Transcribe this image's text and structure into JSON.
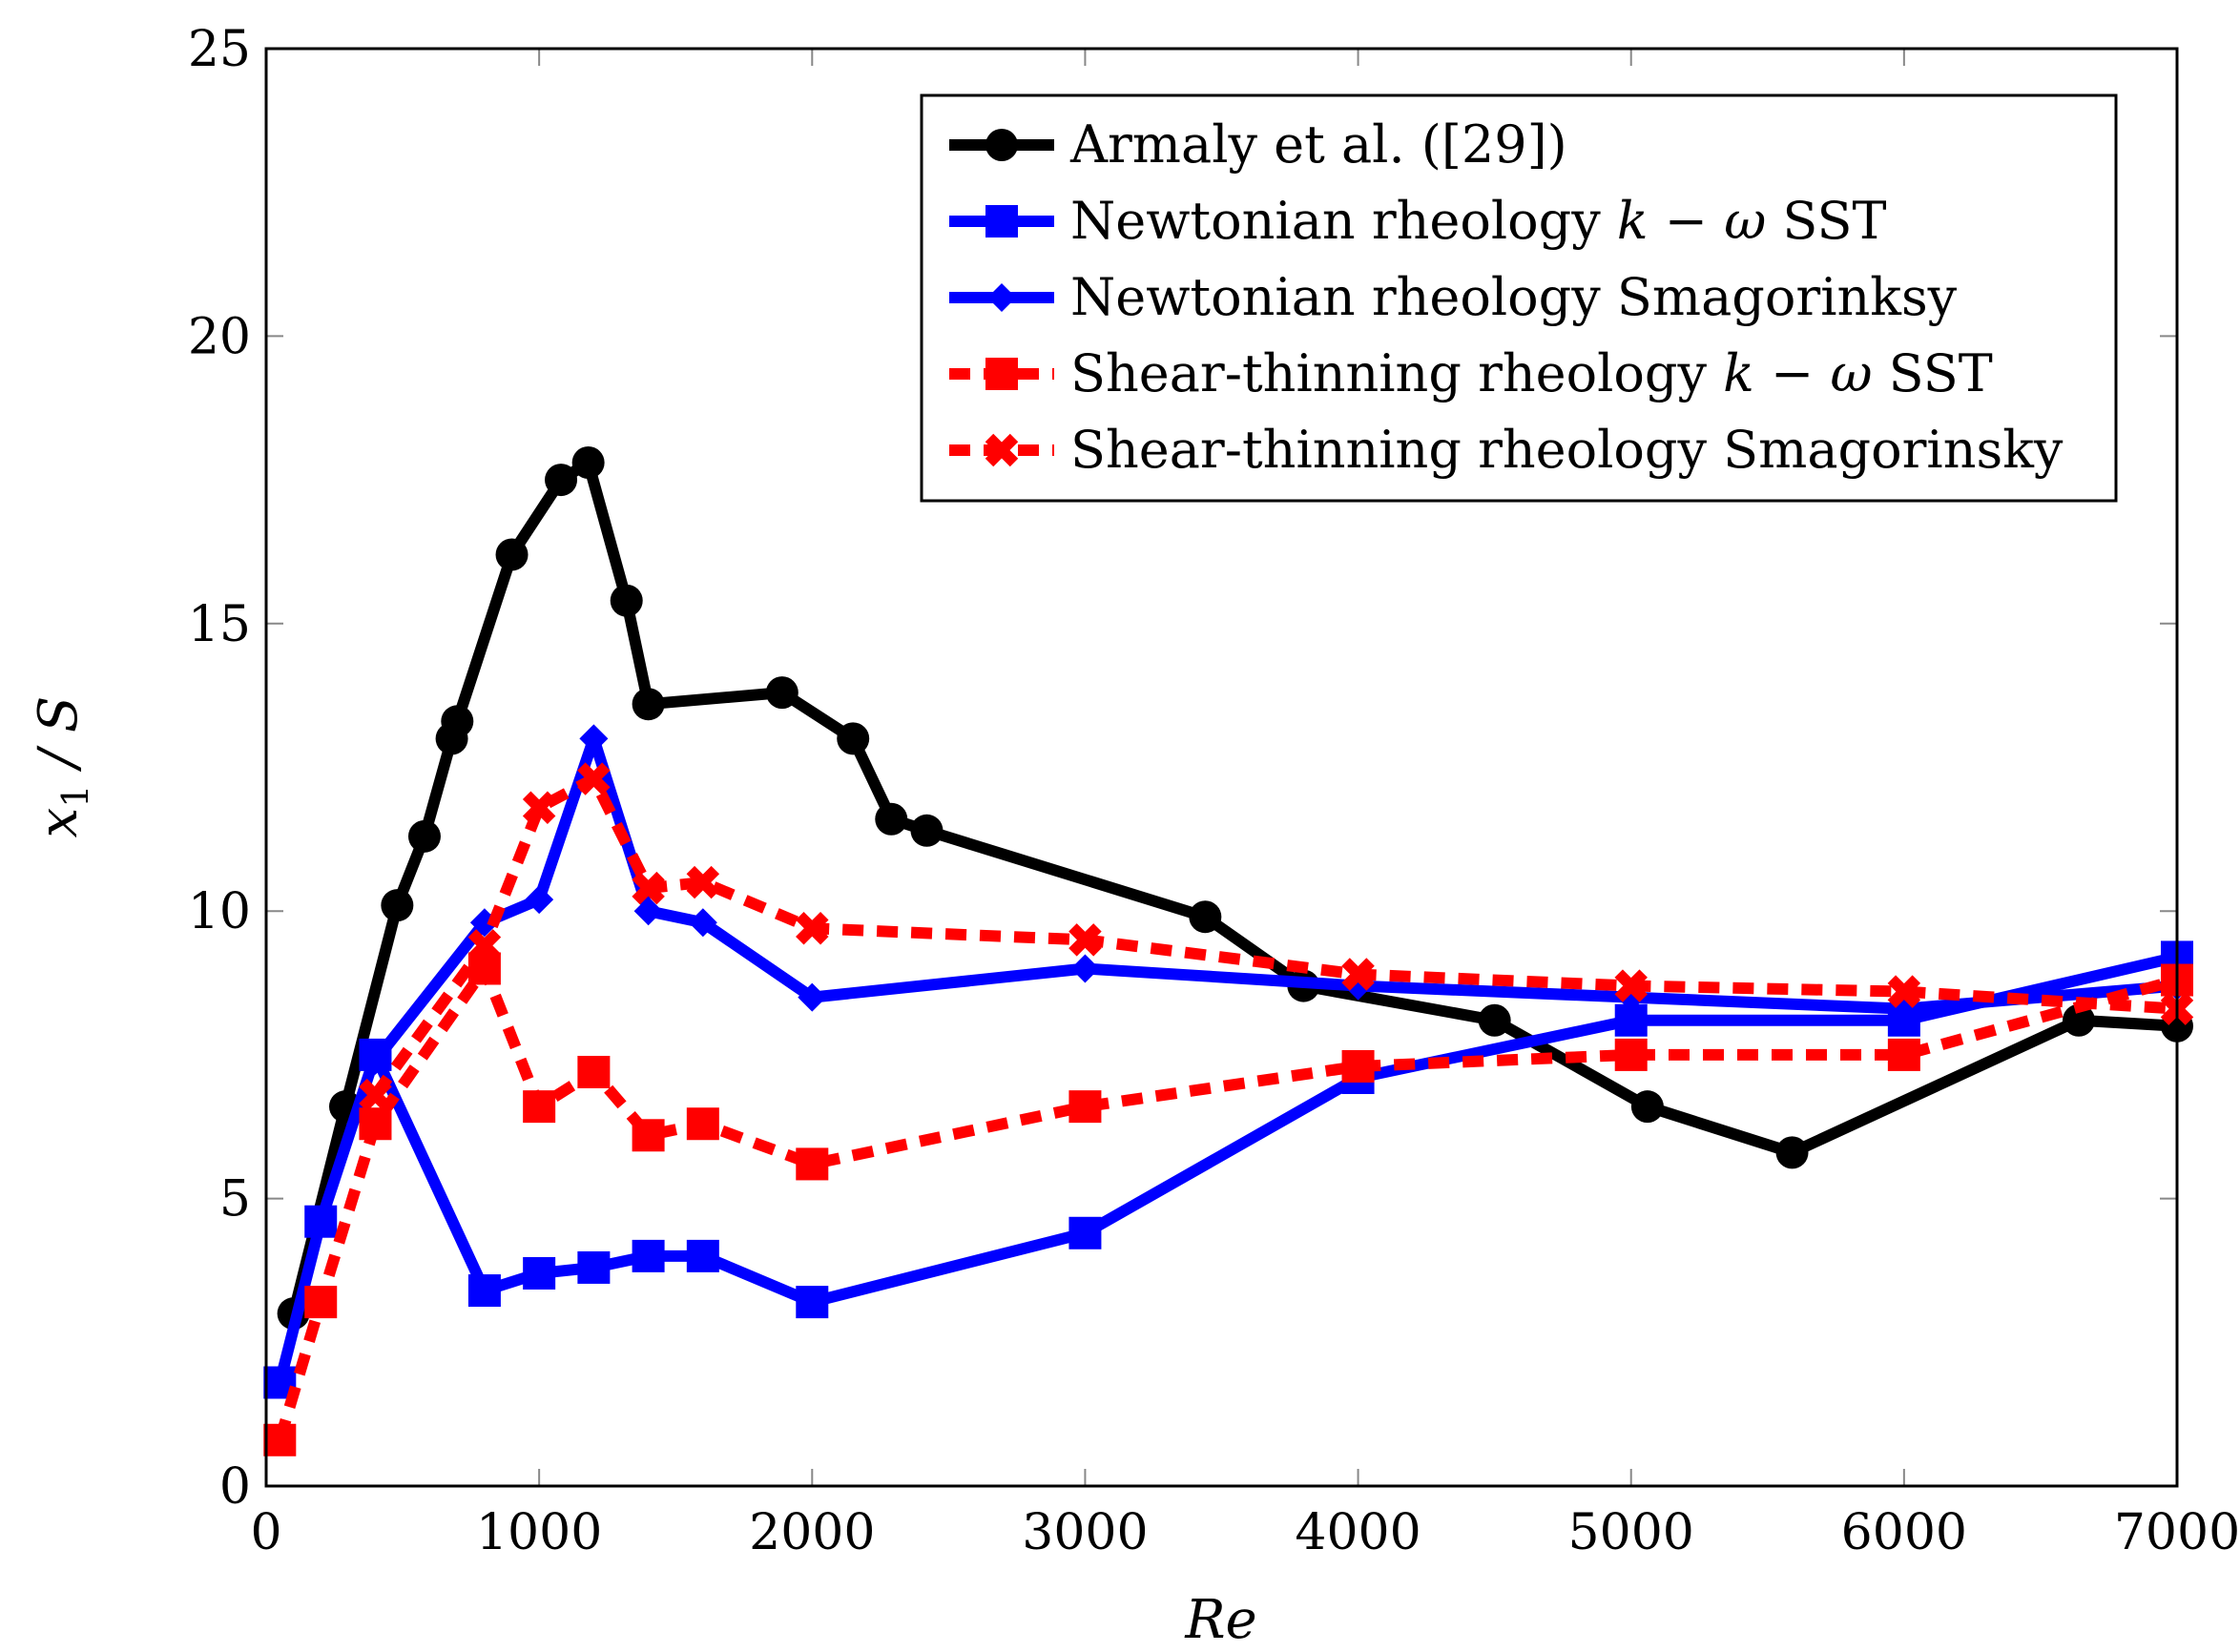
{
  "chart_data": {
    "type": "line",
    "title": "",
    "xlabel": "Re",
    "ylabel": "x1 / S",
    "ylabel_main": "x",
    "ylabel_sub": "1",
    "ylabel_rest": " / S",
    "xlim": [
      0,
      7000
    ],
    "ylim": [
      0,
      25
    ],
    "xticks": [
      0,
      1000,
      2000,
      3000,
      4000,
      5000,
      6000,
      7000
    ],
    "yticks": [
      0,
      5,
      10,
      15,
      20,
      25
    ],
    "legend_position": "top-right",
    "series": [
      {
        "name": "Armaly et al. ([29])",
        "color": "#000000",
        "dash": "solid",
        "marker": "circle",
        "points": [
          [
            100,
            3.0
          ],
          [
            290,
            6.6
          ],
          [
            480,
            10.1
          ],
          [
            580,
            11.3
          ],
          [
            680,
            13.0
          ],
          [
            700,
            13.3
          ],
          [
            900,
            16.2
          ],
          [
            1080,
            17.5
          ],
          [
            1180,
            17.8
          ],
          [
            1320,
            15.4
          ],
          [
            1400,
            13.6
          ],
          [
            1890,
            13.8
          ],
          [
            2150,
            13.0
          ],
          [
            2290,
            11.6
          ],
          [
            2420,
            11.4
          ],
          [
            3440,
            9.9
          ],
          [
            3800,
            8.7
          ],
          [
            4500,
            8.1
          ],
          [
            5060,
            6.6
          ],
          [
            5590,
            5.8
          ],
          [
            6640,
            8.1
          ],
          [
            7000,
            8.0
          ]
        ]
      },
      {
        "name": "Newtonian rheology k − ω SST",
        "name_prefix": "Newtonian rheology ",
        "name_math": "k − ω",
        "name_suffix": " SST",
        "color": "#0000ff",
        "dash": "solid",
        "marker": "square",
        "points": [
          [
            50,
            1.8
          ],
          [
            200,
            4.6
          ],
          [
            400,
            7.5
          ],
          [
            800,
            3.4
          ],
          [
            1000,
            3.7
          ],
          [
            1200,
            3.8
          ],
          [
            1400,
            4.0
          ],
          [
            1600,
            4.0
          ],
          [
            2000,
            3.2
          ],
          [
            3000,
            4.4
          ],
          [
            4000,
            7.1
          ],
          [
            5000,
            8.1
          ],
          [
            6000,
            8.1
          ],
          [
            7000,
            9.2
          ]
        ]
      },
      {
        "name": "Newtonian rheology Smagorinksy",
        "color": "#0000ff",
        "dash": "solid",
        "marker": "diamond",
        "points": [
          [
            400,
            7.4
          ],
          [
            800,
            9.8
          ],
          [
            1000,
            10.2
          ],
          [
            1200,
            13.0
          ],
          [
            1400,
            10.0
          ],
          [
            1600,
            9.8
          ],
          [
            2000,
            8.5
          ],
          [
            3000,
            9.0
          ],
          [
            4000,
            8.7
          ],
          [
            5000,
            8.5
          ],
          [
            6000,
            8.3
          ],
          [
            7000,
            8.7
          ]
        ]
      },
      {
        "name": "Shear-thinning rheology k − ω SST",
        "name_prefix": "Shear-thinning rheology ",
        "name_math": "k − ω",
        "name_suffix": " SST",
        "color": "#ff0000",
        "dash": "dashed",
        "marker": "square",
        "points": [
          [
            50,
            0.8
          ],
          [
            200,
            3.2
          ],
          [
            400,
            6.3
          ],
          [
            800,
            9.0
          ],
          [
            1000,
            6.6
          ],
          [
            1200,
            7.2
          ],
          [
            1400,
            6.1
          ],
          [
            1600,
            6.3
          ],
          [
            2000,
            5.6
          ],
          [
            3000,
            6.6
          ],
          [
            4000,
            7.3
          ],
          [
            5000,
            7.5
          ],
          [
            6000,
            7.5
          ],
          [
            7000,
            8.8
          ]
        ]
      },
      {
        "name": "Shear-thinning rheology Smagorinsky",
        "color": "#ff0000",
        "dash": "dashed",
        "marker": "cross",
        "points": [
          [
            400,
            6.8
          ],
          [
            800,
            9.4
          ],
          [
            1000,
            11.8
          ],
          [
            1200,
            12.3
          ],
          [
            1400,
            10.4
          ],
          [
            1600,
            10.5
          ],
          [
            2000,
            9.7
          ],
          [
            3000,
            9.5
          ],
          [
            4000,
            8.9
          ],
          [
            5000,
            8.7
          ],
          [
            6000,
            8.6
          ],
          [
            7000,
            8.3
          ]
        ]
      }
    ]
  }
}
